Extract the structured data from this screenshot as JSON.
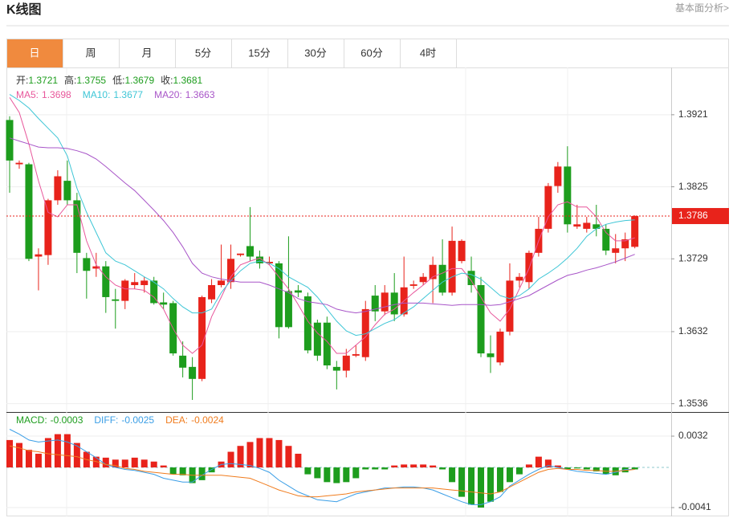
{
  "header": {
    "title": "K线图",
    "link": "基本面分析>"
  },
  "tabs": {
    "items": [
      "日",
      "周",
      "月",
      "5分",
      "15分",
      "30分",
      "60分",
      "4时"
    ],
    "active": 0
  },
  "chart_data": [
    {
      "type": "candlestick",
      "ohlc_legend": [
        {
          "label": "开:",
          "value": 1.3721
        },
        {
          "label": "高:",
          "value": 1.3755
        },
        {
          "label": "低:",
          "value": 1.3679
        },
        {
          "label": "收:",
          "value": 1.3681
        }
      ],
      "legend_color": "#1d9d1d",
      "up_color": "#e8231b",
      "down_color": "#1d9d1d",
      "open": [
        1.3914,
        1.3855,
        1.3855,
        1.3732,
        1.3734,
        1.3807,
        1.3833,
        1.3807,
        1.373,
        1.3716,
        1.3719,
        1.3675,
        1.3673,
        1.3694,
        1.3694,
        1.37,
        1.3671,
        1.367,
        1.36,
        1.3585,
        1.3569,
        1.3675,
        1.3694,
        1.3698,
        1.3734,
        1.3746,
        1.3732,
        1.3723,
        1.3723,
        1.3686,
        1.3687,
        1.3679,
        1.3644,
        1.3644,
        1.3585,
        1.358,
        1.36,
        1.3598,
        1.368,
        1.3659,
        1.3684,
        1.3655,
        1.3693,
        1.3698,
        1.3702,
        1.3721,
        1.3684,
        1.3726,
        1.3713,
        1.3694,
        1.3603,
        1.3591,
        1.3632,
        1.37,
        1.3698,
        1.3737,
        1.3769,
        1.3826,
        1.3852,
        1.3772,
        1.3769,
        1.3775,
        1.3769,
        1.3737,
        1.3743,
        1.3745
      ],
      "close": [
        1.386,
        1.3857,
        1.3729,
        1.3735,
        1.3807,
        1.3839,
        1.3807,
        1.3737,
        1.3713,
        1.3719,
        1.3678,
        1.3673,
        1.37,
        1.3698,
        1.37,
        1.367,
        1.3668,
        1.3603,
        1.3584,
        1.3569,
        1.3678,
        1.3694,
        1.37,
        1.3729,
        1.3736,
        1.3732,
        1.3723,
        1.3725,
        1.3638,
        1.3638,
        1.3684,
        1.3607,
        1.36,
        1.3587,
        1.358,
        1.36,
        1.3602,
        1.3662,
        1.3659,
        1.3684,
        1.3655,
        1.3691,
        1.3695,
        1.3705,
        1.3721,
        1.3684,
        1.3753,
        1.3753,
        1.3694,
        1.3603,
        1.3598,
        1.3632,
        1.37,
        1.3705,
        1.3737,
        1.3769,
        1.3826,
        1.3852,
        1.3775,
        1.3775,
        1.3777,
        1.3769,
        1.374,
        1.3743,
        1.3755,
        1.3786
      ],
      "high": [
        1.3919,
        1.386,
        1.3857,
        1.3743,
        1.3809,
        1.3847,
        1.386,
        1.3817,
        1.3737,
        1.3737,
        1.3726,
        1.3689,
        1.3702,
        1.371,
        1.3705,
        1.3705,
        1.3684,
        1.3673,
        1.3619,
        1.3598,
        1.368,
        1.3702,
        1.3748,
        1.3748,
        1.3736,
        1.3798,
        1.374,
        1.3732,
        1.3726,
        1.3759,
        1.3694,
        1.3684,
        1.3648,
        1.3652,
        1.3593,
        1.3609,
        1.3614,
        1.3673,
        1.3694,
        1.3694,
        1.371,
        1.3732,
        1.37,
        1.371,
        1.3732,
        1.3755,
        1.3772,
        1.3755,
        1.3732,
        1.3705,
        1.3627,
        1.3636,
        1.3723,
        1.371,
        1.374,
        1.3785,
        1.383,
        1.3858,
        1.3879,
        1.3801,
        1.3785,
        1.3801,
        1.3775,
        1.3762,
        1.3764,
        1.3787
      ],
      "low": [
        1.3817,
        1.3849,
        1.3726,
        1.3687,
        1.3721,
        1.3801,
        1.3801,
        1.371,
        1.3676,
        1.3705,
        1.3657,
        1.3636,
        1.3662,
        1.3689,
        1.3684,
        1.3668,
        1.3662,
        1.36,
        1.3571,
        1.3541,
        1.3566,
        1.367,
        1.3691,
        1.3689,
        1.3732,
        1.3726,
        1.3716,
        1.3721,
        1.3623,
        1.3636,
        1.3678,
        1.3603,
        1.3593,
        1.3582,
        1.3555,
        1.3571,
        1.3598,
        1.3593,
        1.3646,
        1.3654,
        1.3646,
        1.3652,
        1.3689,
        1.3694,
        1.367,
        1.368,
        1.368,
        1.3723,
        1.3684,
        1.3598,
        1.3577,
        1.3587,
        1.3627,
        1.3691,
        1.3689,
        1.3732,
        1.3764,
        1.3817,
        1.3764,
        1.3769,
        1.3764,
        1.3759,
        1.3734,
        1.3723,
        1.3726,
        1.3743
      ],
      "lines": [
        {
          "name": "MA5:",
          "color": "#e8579b",
          "current": 1.3698,
          "values": [
            1.3944,
            1.3924,
            1.3882,
            1.3833,
            1.3791,
            1.3785,
            1.3801,
            1.3801,
            1.3753,
            1.3721,
            1.3705,
            1.3694,
            1.3689,
            1.3689,
            1.3687,
            1.3678,
            1.3662,
            1.3636,
            1.3614,
            1.3603,
            1.3614,
            1.3652,
            1.3678,
            1.3705,
            1.3721,
            1.3726,
            1.373,
            1.3721,
            1.3705,
            1.3689,
            1.3668,
            1.3646,
            1.363,
            1.3619,
            1.3603,
            1.3603,
            1.3614,
            1.3625,
            1.3641,
            1.3655,
            1.3662,
            1.3673,
            1.3684,
            1.3694,
            1.3705,
            1.371,
            1.3716,
            1.3716,
            1.37,
            1.3678,
            1.3657,
            1.3646,
            1.3662,
            1.3689,
            1.3716,
            1.3753,
            1.3785,
            1.3801,
            1.3805,
            1.3798,
            1.3798,
            1.3785,
            1.3764,
            1.3753,
            1.3753,
            1.3757
          ]
        },
        {
          "name": "MA10:",
          "color": "#3ec6d6",
          "current": 1.3677,
          "values": [
            1.3948,
            1.394,
            1.393,
            1.3916,
            1.3903,
            1.389,
            1.3866,
            1.3823,
            1.3791,
            1.3764,
            1.3737,
            1.3726,
            1.3721,
            1.3713,
            1.3705,
            1.3698,
            1.3689,
            1.3676,
            1.3665,
            1.3657,
            1.3657,
            1.3662,
            1.3684,
            1.37,
            1.3713,
            1.3723,
            1.3726,
            1.3723,
            1.3716,
            1.3705,
            1.3698,
            1.3691,
            1.3678,
            1.3662,
            1.3646,
            1.3633,
            1.3627,
            1.3629,
            1.3636,
            1.3643,
            1.3648,
            1.3657,
            1.3665,
            1.3676,
            1.3687,
            1.3698,
            1.3705,
            1.371,
            1.3708,
            1.3702,
            1.3691,
            1.368,
            1.3676,
            1.368,
            1.3689,
            1.3702,
            1.371,
            1.3719,
            1.373,
            1.3743,
            1.3759,
            1.3769,
            1.3775,
            1.3778,
            1.378,
            1.3781
          ]
        },
        {
          "name": "MA20:",
          "color": "#a855c8",
          "current": 1.3663,
          "values": [
            1.389,
            1.3886,
            1.3882,
            1.3878,
            1.3877,
            1.3877,
            1.3876,
            1.3873,
            1.3869,
            1.3862,
            1.3852,
            1.3841,
            1.383,
            1.382,
            1.3807,
            1.3794,
            1.378,
            1.3764,
            1.3745,
            1.3723,
            1.371,
            1.3705,
            1.3702,
            1.37,
            1.3698,
            1.3698,
            1.3698,
            1.3694,
            1.3689,
            1.3684,
            1.3676,
            1.3672,
            1.367,
            1.3668,
            1.3662,
            1.3659,
            1.3657,
            1.3659,
            1.3662,
            1.3665,
            1.3668,
            1.367,
            1.367,
            1.367,
            1.3669,
            1.3668,
            1.3667,
            1.3668,
            1.3668,
            1.3668,
            1.3667,
            1.3668,
            1.3672,
            1.3676,
            1.368,
            1.3687,
            1.3694,
            1.3701,
            1.3707,
            1.371,
            1.3714,
            1.3717,
            1.3721,
            1.3725,
            1.373,
            1.3735
          ]
        }
      ],
      "last_price": 1.3786,
      "ylim": [
        1.3526,
        1.3984
      ],
      "yticks": [
        1.3921,
        1.3825,
        1.3729,
        1.3632,
        1.3536
      ],
      "grid": true
    },
    {
      "type": "macd",
      "histogram": {
        "name": "MACD:",
        "color": "#1d9d1d",
        "current": -0.0003,
        "up_color": "#e8231b",
        "down_color": "#1d9d1d",
        "values": [
          0.0028,
          0.0025,
          0.0018,
          0.0014,
          0.003,
          0.0034,
          0.0034,
          0.0025,
          0.0016,
          0.0011,
          0.001,
          0.0008,
          0.0008,
          0.001,
          0.0008,
          0.0006,
          0.0002,
          -0.0007,
          -0.0008,
          -0.0016,
          -0.0013,
          -0.0005,
          0.0006,
          0.0016,
          0.0022,
          0.0026,
          0.003,
          0.003,
          0.0028,
          0.0022,
          0.0014,
          -0.0007,
          -0.0011,
          -0.0015,
          -0.0016,
          -0.0015,
          -0.0011,
          -0.0002,
          -0.0002,
          -0.0002,
          0.0002,
          0.0003,
          0.0003,
          0.0003,
          0.0002,
          -0.0002,
          -0.0015,
          -0.003,
          -0.0038,
          -0.0041,
          -0.0035,
          -0.0025,
          -0.0015,
          -0.0007,
          0.0003,
          0.0011,
          0.0008,
          0.0002,
          -0.0002,
          -0.0001,
          -0.0002,
          -0.0004,
          -0.0007,
          -0.0008,
          -0.0005,
          -0.0002
        ]
      },
      "lines": [
        {
          "name": "DIFF:",
          "color": "#3a9ee6",
          "current": -0.0025,
          "values": [
            0.0039,
            0.0034,
            0.0028,
            0.0026,
            0.0027,
            0.0028,
            0.0026,
            0.0022,
            0.0016,
            0.001,
            0.0003,
            0,
            -0.0002,
            -0.0003,
            -0.0005,
            -0.0007,
            -0.0011,
            -0.0013,
            -0.0015,
            -0.0015,
            -0.0008,
            -0.0002,
            0.0003,
            0.0004,
            0.0003,
            0.0002,
            -0.0001,
            -0.0005,
            -0.0013,
            -0.0019,
            -0.0025,
            -0.0029,
            -0.0033,
            -0.0034,
            -0.0035,
            -0.0031,
            -0.0027,
            -0.0025,
            -0.0023,
            -0.0021,
            -0.0021,
            -0.002,
            -0.002,
            -0.0021,
            -0.0023,
            -0.0027,
            -0.0031,
            -0.0035,
            -0.0038,
            -0.0038,
            -0.0035,
            -0.003,
            -0.0019,
            -0.0013,
            -0.0007,
            -0.0002,
            0.0002,
            0,
            -0.0002,
            -0.0004,
            -0.0005,
            -0.0006,
            -0.0007,
            -0.0005,
            -0.0002,
            -0.0002
          ]
        },
        {
          "name": "DEA:",
          "color": "#f07c1e",
          "current": -0.0024,
          "values": [
            0.0022,
            0.002,
            0.0017,
            0.0016,
            0.0014,
            0.0013,
            0.0012,
            0.0011,
            0.0008,
            0.0006,
            0.0003,
            0.0002,
            -0.0001,
            -0.0002,
            -0.0004,
            -0.0005,
            -0.0006,
            -0.0007,
            -0.0007,
            -0.0008,
            -0.0008,
            -0.0008,
            -0.0008,
            -0.0009,
            -0.001,
            -0.0011,
            -0.0015,
            -0.0019,
            -0.0023,
            -0.0026,
            -0.0029,
            -0.003,
            -0.003,
            -0.0029,
            -0.0028,
            -0.0027,
            -0.0025,
            -0.0024,
            -0.0023,
            -0.0022,
            -0.0021,
            -0.0021,
            -0.0021,
            -0.0021,
            -0.0021,
            -0.0022,
            -0.0023,
            -0.0024,
            -0.0025,
            -0.0026,
            -0.0027,
            -0.0025,
            -0.002,
            -0.0015,
            -0.001,
            -0.0005,
            -0.0002,
            -0.0001,
            -0.0002,
            -0.0002,
            -0.0003,
            -0.0003,
            -0.0004,
            -0.0004,
            -0.0003,
            -0.0002
          ]
        }
      ],
      "ylim": [
        -0.005,
        0.0055
      ],
      "yticks": [
        0.0032,
        -0.0041
      ]
    }
  ]
}
